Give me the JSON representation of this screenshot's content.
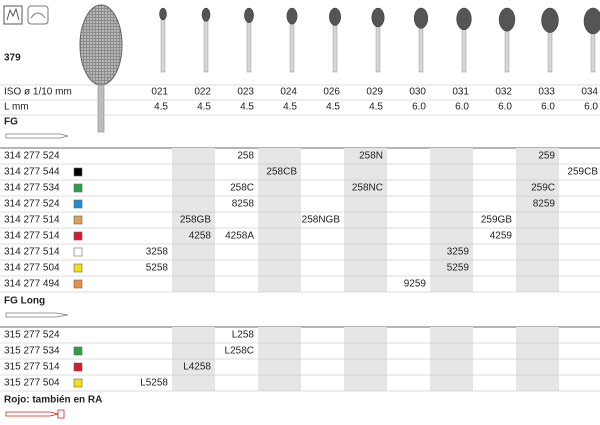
{
  "header": {
    "model": "379",
    "iso_label": "ISO ø 1/10 mm",
    "length_label": "L mm",
    "sizes": [
      "021",
      "022",
      "023",
      "024",
      "026",
      "029",
      "030",
      "031",
      "032",
      "033",
      "034"
    ],
    "lengths": [
      "4.5",
      "4.5",
      "4.5",
      "4.5",
      "4.5",
      "4.5",
      "6.0",
      "6.0",
      "6.0",
      "6.0",
      "6.0"
    ]
  },
  "sections": [
    {
      "title": "FG",
      "rows": [
        {
          "code": "314 277 524",
          "cells": [
            null,
            null,
            {
              "text": "258",
              "color": "#d7261e"
            },
            null,
            null,
            "258N",
            null,
            null,
            null,
            "259",
            null
          ]
        },
        {
          "code": "314 277 544",
          "swatch": "#000000",
          "cells": [
            null,
            null,
            null,
            "258CB",
            null,
            null,
            null,
            null,
            null,
            null,
            "259CB"
          ]
        },
        {
          "code": "314 277 534",
          "swatch": "#2aa243",
          "cells": [
            null,
            null,
            "258C",
            null,
            null,
            "258NC",
            null,
            null,
            null,
            "259C",
            null
          ]
        },
        {
          "code": "314 277 524",
          "swatch": "#1a8fd6",
          "cells": [
            null,
            null,
            "8258",
            null,
            null,
            null,
            null,
            null,
            null,
            "8259",
            null
          ]
        },
        {
          "code": "314 277 514",
          "swatch": "#d9a257",
          "cells": [
            null,
            {
              "text": "258GB",
              "color": "#d7261e"
            },
            null,
            null,
            "258NGB",
            null,
            null,
            null,
            "259GB",
            null,
            null
          ]
        },
        {
          "code": "314 277 514",
          "swatch": "#d7192a",
          "cells": [
            null,
            {
              "text": "4258",
              "color": "#d7261e"
            },
            "4258A",
            null,
            null,
            null,
            null,
            null,
            "4259",
            null,
            null
          ]
        },
        {
          "code": "314 277 514",
          "swatch": "#ffffff",
          "cells": [
            "3258",
            null,
            null,
            null,
            null,
            null,
            null,
            "3259",
            null,
            null,
            null
          ]
        },
        {
          "code": "314 277 504",
          "swatch": "#f2e11a",
          "cells": [
            "5258",
            null,
            null,
            null,
            null,
            null,
            null,
            "5259",
            null,
            null,
            null
          ]
        },
        {
          "code": "314 277 494",
          "swatch": "#e8904a",
          "cells": [
            null,
            null,
            null,
            null,
            null,
            null,
            "9259",
            null,
            null,
            null,
            null
          ]
        }
      ]
    },
    {
      "title": "FG Long",
      "rows": [
        {
          "code": "315 277 524",
          "cells": [
            null,
            null,
            "L258",
            null,
            null,
            null,
            null,
            null,
            null,
            null,
            null
          ]
        },
        {
          "code": "315 277 534",
          "swatch": "#2aa243",
          "cells": [
            null,
            null,
            "L258C",
            null,
            null,
            null,
            null,
            null,
            null,
            null,
            null
          ]
        },
        {
          "code": "315 277 514",
          "swatch": "#d7192a",
          "cells": [
            null,
            "L4258",
            null,
            null,
            null,
            null,
            null,
            null,
            null,
            null,
            null
          ]
        },
        {
          "code": "315 277 504",
          "swatch": "#f2e11a",
          "cells": [
            "L5258",
            null,
            null,
            null,
            null,
            null,
            null,
            null,
            null,
            null,
            null
          ]
        }
      ]
    }
  ],
  "footer": {
    "note": "Rojo: también en RA"
  }
}
